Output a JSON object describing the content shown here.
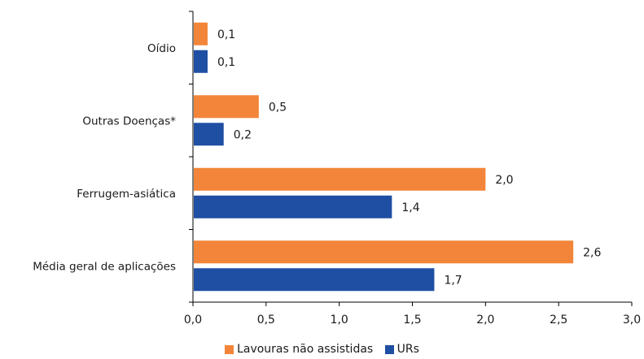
{
  "chart_data": {
    "type": "bar",
    "orientation": "horizontal",
    "categories": [
      "Oídio",
      "Outras Doenças*",
      "Ferrugem-asiática",
      "Média geral de aplicações"
    ],
    "series": [
      {
        "name": "Lavouras não assistidas",
        "color": "#F28539",
        "values": [
          0.1,
          0.45,
          2.0,
          2.6
        ],
        "labels": [
          "0,1",
          "0,5",
          "2,0",
          "2,6"
        ]
      },
      {
        "name": "URs",
        "color": "#1F4FA3",
        "values": [
          0.1,
          0.21,
          1.36,
          1.65
        ],
        "labels": [
          "0,1",
          "0,2",
          "1,4",
          "1,7"
        ]
      }
    ],
    "xlim": [
      0,
      3.0
    ],
    "xticks": [
      "0,0",
      "0,5",
      "1,0",
      "1,5",
      "2,0",
      "2,5",
      "3,0"
    ],
    "legend_position": "bottom",
    "title": "",
    "xlabel": "",
    "ylabel": ""
  }
}
